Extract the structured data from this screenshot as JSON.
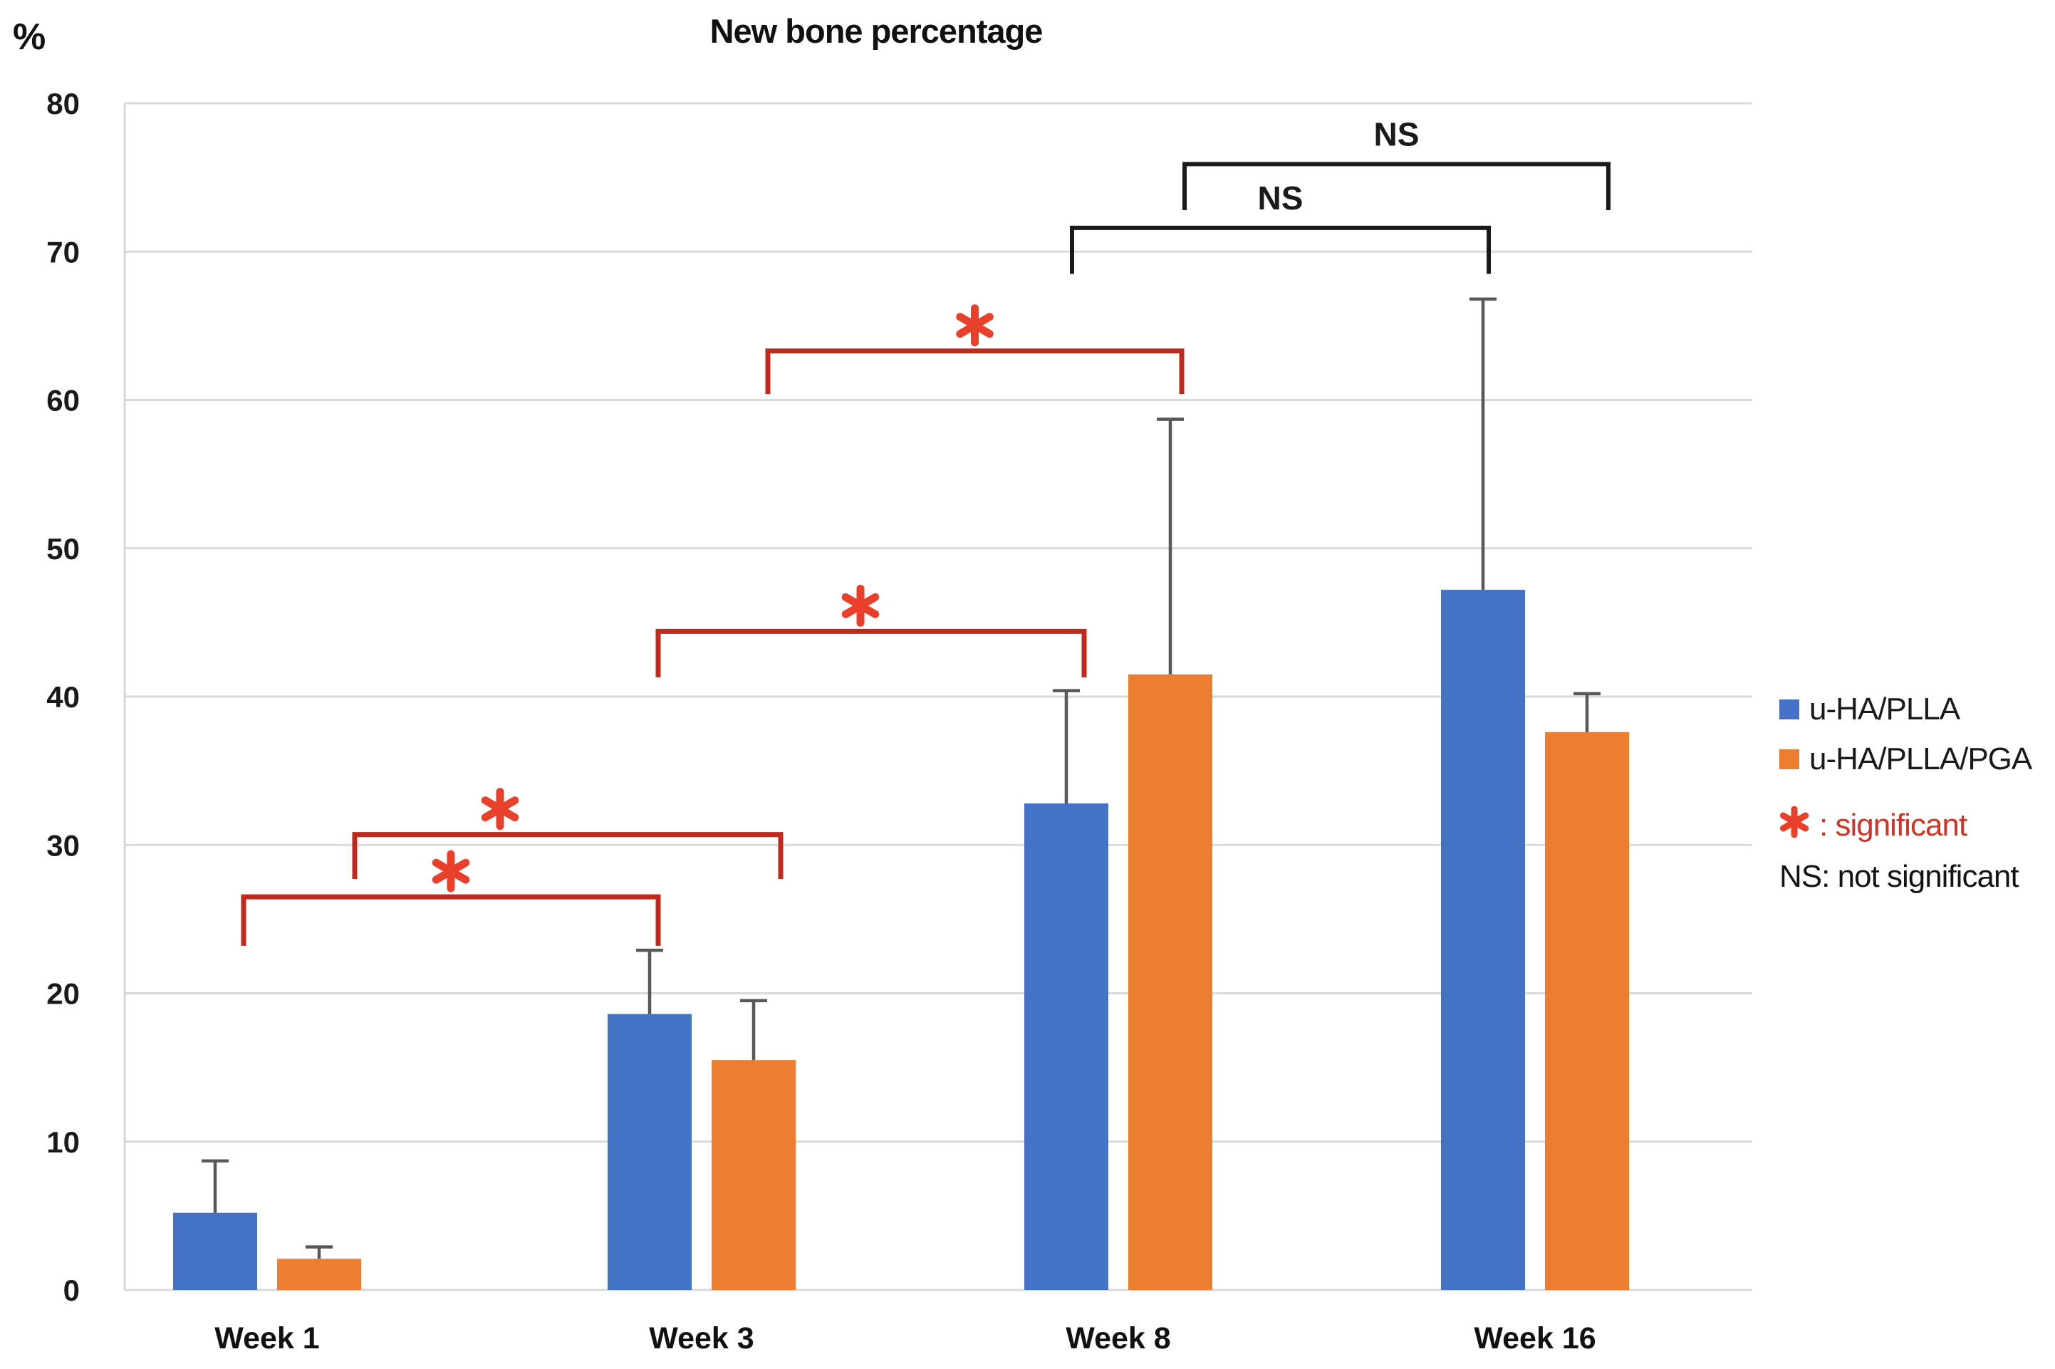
{
  "figure_title": "New bone percentage",
  "chart_data": {
    "type": "bar",
    "title": "New bone percentage",
    "y_axis_label": "%",
    "xlabel": "",
    "ylabel": "%",
    "ylim": [
      0,
      80
    ],
    "yticks": [
      0,
      10,
      20,
      30,
      40,
      50,
      60,
      70,
      80
    ],
    "grid": true,
    "legend_position": "right",
    "categories": [
      "Week 1",
      "Week 3",
      "Week 8",
      "Week 16"
    ],
    "series": [
      {
        "name": "u-HA/PLLA",
        "color": "#4472c4",
        "values": [
          5.2,
          18.6,
          32.8,
          47.2
        ],
        "error_up": [
          3.5,
          4.3,
          7.6,
          19.6
        ]
      },
      {
        "name": "u-HA/PLLA/PGA",
        "color": "#ed7d31",
        "values": [
          2.1,
          15.5,
          41.5,
          37.6
        ],
        "error_up": [
          0.8,
          4.0,
          17.2,
          2.6
        ]
      }
    ],
    "annotations": [
      {
        "label": "*",
        "significant": true,
        "from_category": "Week 1",
        "to_category": "Week 3",
        "series": "u-HA/PLLA",
        "series_index": 0,
        "from_group": 0,
        "to_group": 1,
        "y": 26.5,
        "drop": 3.3,
        "dx1": 40,
        "dx2": 12,
        "label_dx": 0
      },
      {
        "label": "*",
        "significant": true,
        "from_category": "Week 1",
        "to_category": "Week 3",
        "series": "u-HA/PLLA/PGA",
        "series_index": 1,
        "from_group": 0,
        "to_group": 1,
        "y": 30.7,
        "drop": 3.0,
        "dx1": 50,
        "dx2": 38,
        "label_dx": -95
      },
      {
        "label": "*",
        "significant": true,
        "from_category": "Week 3",
        "to_category": "Week 8",
        "series": "u-HA/PLLA",
        "series_index": 0,
        "from_group": 1,
        "to_group": 2,
        "y": 44.4,
        "drop": 3.1,
        "dx1": 12,
        "dx2": 25,
        "label_dx": -15
      },
      {
        "label": "*",
        "significant": true,
        "from_category": "Week 3",
        "to_category": "Week 8",
        "series": "u-HA/PLLA/PGA",
        "series_index": 1,
        "from_group": 1,
        "to_group": 2,
        "y": 63.3,
        "drop": 2.9,
        "dx1": 20,
        "dx2": 16,
        "label_dx": 0
      },
      {
        "label": "NS",
        "significant": false,
        "from_category": "Week 8",
        "to_category": "Week 16",
        "series": "u-HA/PLLA",
        "series_index": 0,
        "from_group": 2,
        "to_group": 3,
        "y": 71.6,
        "drop": 3.1,
        "dx1": 8,
        "dx2": 8,
        "label_dx": 0
      },
      {
        "label": "NS",
        "significant": false,
        "from_category": "Week 8",
        "to_category": "Week 16",
        "series": "u-HA/PLLA/PGA",
        "series_index": 1,
        "from_group": 2,
        "to_group": 3,
        "y": 75.9,
        "drop": 3.1,
        "dx1": 20,
        "dx2": 30,
        "label_dx": 0
      }
    ],
    "notes": [
      {
        "symbol": "*",
        "text": ": significant"
      },
      {
        "symbol": "NS",
        "text": "NS: not significant"
      }
    ]
  },
  "colors": {
    "series_blue": "#4472c4",
    "series_orange": "#ed7d31",
    "bracket_red": "#c02a1c",
    "asterisk_red": "#e8402a",
    "significant_text_red": "#cf3526",
    "error_bar_gray": "#57585a",
    "gridline_gray": "#d9d9d9",
    "text_black": "#1a1a1a"
  }
}
